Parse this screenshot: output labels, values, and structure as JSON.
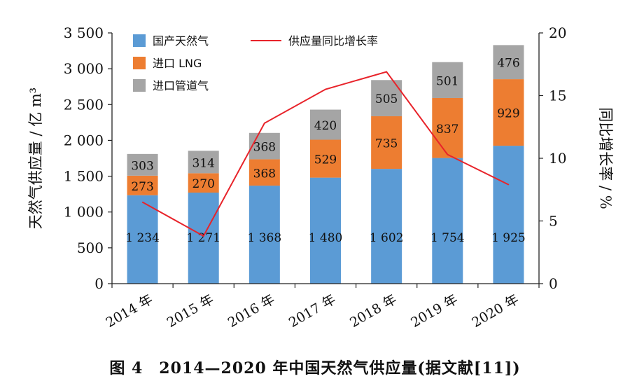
{
  "caption": "图 4　2014—2020 年中国天然气供应量(据文献[11])",
  "colors": {
    "domestic": "#5b9bd5",
    "lng": "#ed7d31",
    "pipeline": "#a5a5a5",
    "growth": "#e8232a"
  },
  "chart_data": {
    "type": "bar",
    "stacked": true,
    "categories": [
      "2014 年",
      "2015 年",
      "2016 年",
      "2017 年",
      "2018 年",
      "2019 年",
      "2020 年"
    ],
    "series": [
      {
        "name": "国产天然气",
        "values": [
          1234,
          1271,
          1368,
          1480,
          1602,
          1754,
          1925
        ],
        "labels": [
          "1 234",
          "1 271",
          "1 368",
          "1 480",
          "1 602",
          "1 754",
          "1 925"
        ]
      },
      {
        "name": "进口 LNG",
        "values": [
          273,
          270,
          368,
          529,
          735,
          837,
          929
        ],
        "labels": [
          "273",
          "270",
          "368",
          "529",
          "735",
          "837",
          "929"
        ]
      },
      {
        "name": "进口管道气",
        "values": [
          303,
          314,
          368,
          420,
          505,
          501,
          476
        ],
        "labels": [
          "303",
          "314",
          "368",
          "420",
          "505",
          "501",
          "476"
        ]
      }
    ],
    "line_series": {
      "name": "供应量同比增长率",
      "axis": "right",
      "values": [
        6.5,
        3.8,
        12.8,
        15.5,
        16.9,
        10.3,
        7.9
      ]
    },
    "ylabel": "天然气供应量 / 亿 m³",
    "ylim": [
      0,
      3500
    ],
    "yticks": [
      0,
      500,
      1000,
      1500,
      2000,
      2500,
      3000,
      3500
    ],
    "ytick_labels": [
      "0",
      "500",
      "1 000",
      "1 500",
      "2 000",
      "2 500",
      "3 000",
      "3 500"
    ],
    "y2label": "同比增长率 / %",
    "y2lim": [
      0,
      20
    ],
    "y2ticks": [
      0,
      5,
      10,
      15,
      20
    ],
    "y2tick_labels": [
      "0",
      "5",
      "10",
      "15",
      "20"
    ],
    "legend": "top-left",
    "grid": false
  }
}
